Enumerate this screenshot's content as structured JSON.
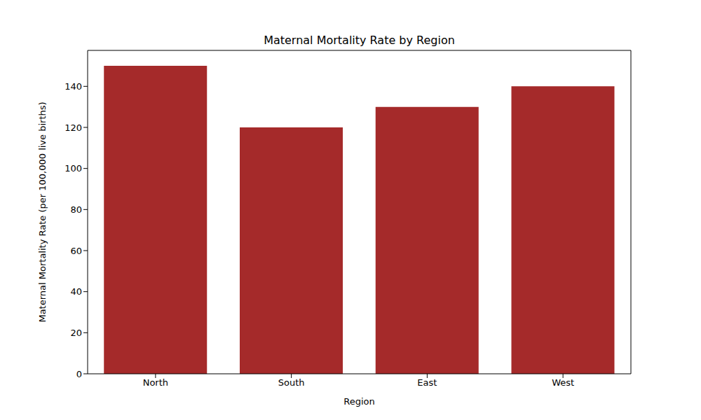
{
  "chart_data": {
    "type": "bar",
    "title": "Maternal Mortality Rate by Region",
    "x_label": "Region",
    "y_label": "Maternal Mortality Rate (per 100,000 live births)",
    "categories": [
      "North",
      "South",
      "East",
      "West"
    ],
    "values": [
      150,
      120,
      130,
      140
    ],
    "color": "#a52a2a",
    "ylim": [
      0,
      157.5
    ],
    "yticks": [
      0,
      20,
      40,
      60,
      80,
      100,
      120,
      140
    ],
    "grid": false
  }
}
